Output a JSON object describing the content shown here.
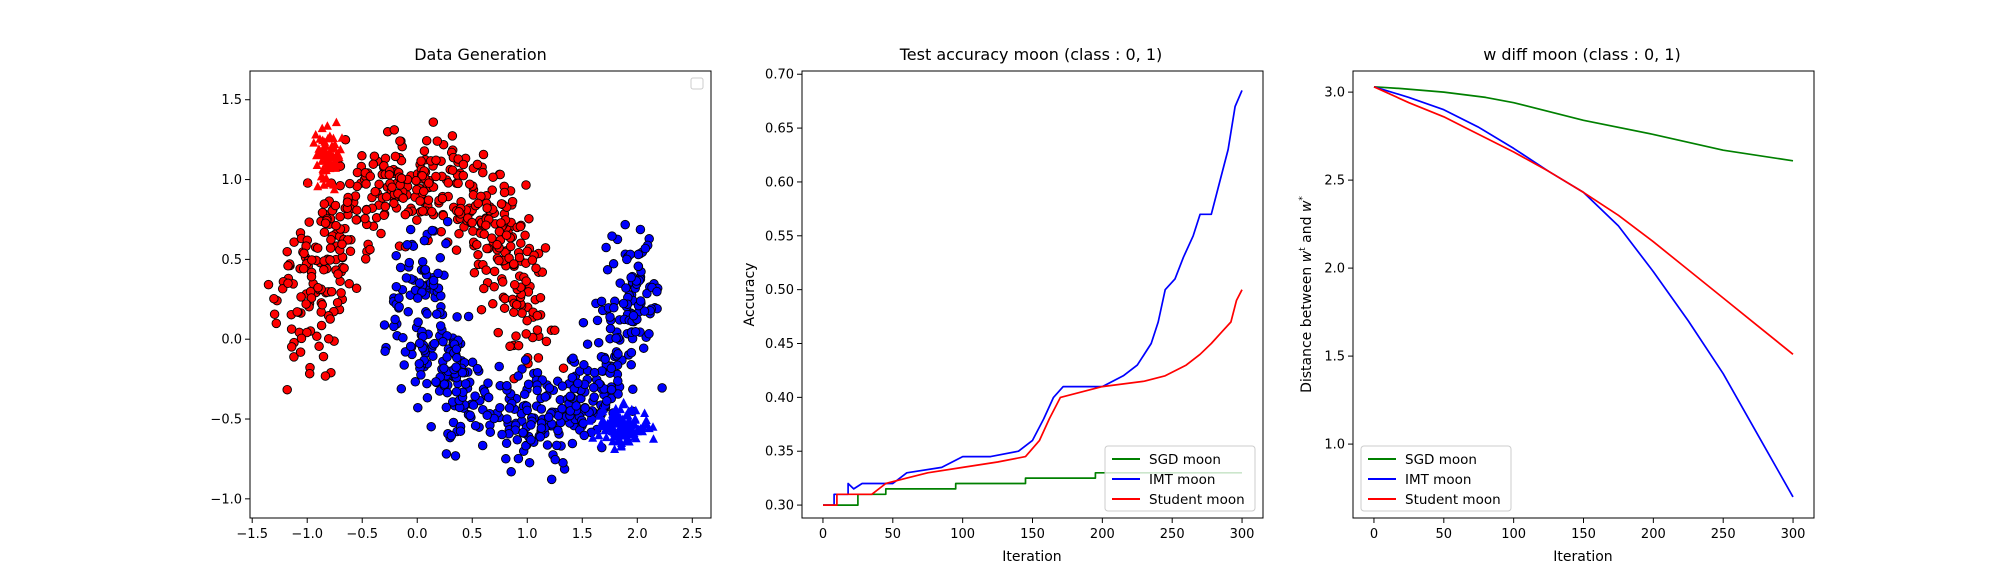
{
  "figure": {
    "background": "#ffffff"
  },
  "chart_data": [
    {
      "type": "scatter",
      "title": "Data Generation",
      "xlabel": "",
      "ylabel": "",
      "xlim": [
        -1.52,
        2.67
      ],
      "ylim": [
        -1.12,
        1.68
      ],
      "xticks": [
        -1.5,
        -1.0,
        -0.5,
        0.0,
        0.5,
        1.0,
        1.5,
        2.0,
        2.5
      ],
      "xtick_labels": [
        "−1.5",
        "−1.0",
        "−0.5",
        "0.0",
        "0.5",
        "1.0",
        "1.5",
        "2.0",
        "2.5"
      ],
      "yticks": [
        -1.0,
        -0.5,
        0.0,
        0.5,
        1.0,
        1.5
      ],
      "ytick_labels": [
        "−1.0",
        "−0.5",
        "0.0",
        "0.5",
        "1.0",
        "1.5"
      ],
      "grid": false,
      "legend": {
        "position": "top-right",
        "entries": []
      },
      "series": [
        {
          "class": 0,
          "color": "#ff0000",
          "marker": "circle",
          "edge": "#000000",
          "distribution": "upper moon",
          "count": 500,
          "noise": 0.15,
          "center": [
            0.0,
            0.0
          ],
          "radius": 1.0,
          "angle_range_deg": [
            0,
            180
          ]
        },
        {
          "class": 1,
          "color": "#0000ff",
          "marker": "circle",
          "edge": "#000000",
          "distribution": "lower moon",
          "count": 500,
          "noise": 0.15,
          "center": [
            1.0,
            0.5
          ],
          "radius": 1.0,
          "angle_range_deg": [
            180,
            360
          ]
        },
        {
          "class": 0,
          "color": "#ff0000",
          "marker": "triangle",
          "count": 70,
          "cluster_center": [
            -0.8,
            1.15
          ],
          "cluster_spread": [
            0.06,
            0.08
          ]
        },
        {
          "class": 1,
          "color": "#0000ff",
          "marker": "triangle",
          "count": 120,
          "cluster_center": [
            1.85,
            -0.55
          ],
          "cluster_spread": [
            0.13,
            0.06
          ]
        }
      ]
    },
    {
      "type": "line",
      "title": "Test accuracy moon (class : 0, 1)",
      "xlabel": "Iteration",
      "ylabel": "Accuracy",
      "xlim": [
        -15,
        315
      ],
      "ylim": [
        0.288,
        0.703
      ],
      "xticks": [
        0,
        50,
        100,
        150,
        200,
        250,
        300
      ],
      "xtick_labels": [
        "0",
        "50",
        "100",
        "150",
        "200",
        "250",
        "300"
      ],
      "yticks": [
        0.3,
        0.35,
        0.4,
        0.45,
        0.5,
        0.55,
        0.6,
        0.65,
        0.7
      ],
      "ytick_labels": [
        "0.30",
        "0.35",
        "0.40",
        "0.45",
        "0.50",
        "0.55",
        "0.60",
        "0.65",
        "0.70"
      ],
      "grid": false,
      "legend": {
        "position": "lower-right"
      },
      "series": [
        {
          "name": "SGD moon",
          "color": "#008000",
          "points": [
            [
              0,
              0.3
            ],
            [
              25,
              0.3
            ],
            [
              25,
              0.31
            ],
            [
              45,
              0.31
            ],
            [
              45,
              0.315
            ],
            [
              95,
              0.315
            ],
            [
              95,
              0.32
            ],
            [
              145,
              0.32
            ],
            [
              145,
              0.325
            ],
            [
              195,
              0.325
            ],
            [
              195,
              0.33
            ],
            [
              300,
              0.33
            ]
          ]
        },
        {
          "name": "IMT moon",
          "color": "#0000ff",
          "points": [
            [
              0,
              0.3
            ],
            [
              8,
              0.3
            ],
            [
              8,
              0.31
            ],
            [
              18,
              0.31
            ],
            [
              18,
              0.32
            ],
            [
              22,
              0.315
            ],
            [
              28,
              0.32
            ],
            [
              50,
              0.32
            ],
            [
              60,
              0.33
            ],
            [
              85,
              0.335
            ],
            [
              100,
              0.345
            ],
            [
              120,
              0.345
            ],
            [
              140,
              0.35
            ],
            [
              150,
              0.36
            ],
            [
              158,
              0.38
            ],
            [
              165,
              0.4
            ],
            [
              172,
              0.41
            ],
            [
              200,
              0.41
            ],
            [
              215,
              0.42
            ],
            [
              225,
              0.43
            ],
            [
              235,
              0.45
            ],
            [
              240,
              0.47
            ],
            [
              245,
              0.5
            ],
            [
              252,
              0.51
            ],
            [
              258,
              0.53
            ],
            [
              265,
              0.55
            ],
            [
              270,
              0.57
            ],
            [
              278,
              0.57
            ],
            [
              284,
              0.6
            ],
            [
              290,
              0.63
            ],
            [
              295,
              0.67
            ],
            [
              300,
              0.685
            ]
          ]
        },
        {
          "name": "Student moon",
          "color": "#ff0000",
          "points": [
            [
              0,
              0.3
            ],
            [
              10,
              0.3
            ],
            [
              10,
              0.31
            ],
            [
              35,
              0.31
            ],
            [
              45,
              0.32
            ],
            [
              60,
              0.325
            ],
            [
              75,
              0.33
            ],
            [
              100,
              0.335
            ],
            [
              125,
              0.34
            ],
            [
              145,
              0.345
            ],
            [
              155,
              0.36
            ],
            [
              162,
              0.38
            ],
            [
              170,
              0.4
            ],
            [
              200,
              0.41
            ],
            [
              230,
              0.415
            ],
            [
              245,
              0.42
            ],
            [
              260,
              0.43
            ],
            [
              270,
              0.44
            ],
            [
              278,
              0.45
            ],
            [
              285,
              0.46
            ],
            [
              292,
              0.47
            ],
            [
              296,
              0.49
            ],
            [
              300,
              0.5
            ]
          ]
        }
      ]
    },
    {
      "type": "line",
      "title": "w diff moon (class : 0, 1)",
      "xlabel": "Iteration",
      "ylabel": "Distance between w^t and w^*",
      "ylabel_parts": [
        "Distance between ",
        "w",
        "t",
        " and ",
        "w",
        "*"
      ],
      "xlim": [
        -15,
        315
      ],
      "ylim": [
        0.58,
        3.12
      ],
      "xticks": [
        0,
        50,
        100,
        150,
        200,
        250,
        300
      ],
      "xtick_labels": [
        "0",
        "50",
        "100",
        "150",
        "200",
        "250",
        "300"
      ],
      "yticks": [
        1.0,
        1.5,
        2.0,
        2.5,
        3.0
      ],
      "ytick_labels": [
        "1.0",
        "1.5",
        "2.0",
        "2.5",
        "3.0"
      ],
      "grid": false,
      "legend": {
        "position": "lower-left"
      },
      "series": [
        {
          "name": "SGD moon",
          "color": "#008000",
          "points": [
            [
              0,
              3.03
            ],
            [
              20,
              3.02
            ],
            [
              50,
              3.0
            ],
            [
              80,
              2.97
            ],
            [
              100,
              2.94
            ],
            [
              150,
              2.84
            ],
            [
              200,
              2.76
            ],
            [
              250,
              2.67
            ],
            [
              300,
              2.61
            ]
          ]
        },
        {
          "name": "IMT moon",
          "color": "#0000ff",
          "points": [
            [
              0,
              3.03
            ],
            [
              25,
              2.97
            ],
            [
              50,
              2.9
            ],
            [
              75,
              2.8
            ],
            [
              100,
              2.68
            ],
            [
              125,
              2.55
            ],
            [
              150,
              2.43
            ],
            [
              175,
              2.24
            ],
            [
              200,
              1.98
            ],
            [
              225,
              1.7
            ],
            [
              250,
              1.4
            ],
            [
              275,
              1.05
            ],
            [
              300,
              0.7
            ]
          ]
        },
        {
          "name": "Student moon",
          "color": "#ff0000",
          "points": [
            [
              0,
              3.03
            ],
            [
              25,
              2.94
            ],
            [
              50,
              2.86
            ],
            [
              75,
              2.76
            ],
            [
              100,
              2.66
            ],
            [
              125,
              2.55
            ],
            [
              150,
              2.43
            ],
            [
              175,
              2.3
            ],
            [
              200,
              2.15
            ],
            [
              225,
              1.99
            ],
            [
              250,
              1.83
            ],
            [
              275,
              1.67
            ],
            [
              300,
              1.51
            ]
          ]
        }
      ]
    }
  ]
}
